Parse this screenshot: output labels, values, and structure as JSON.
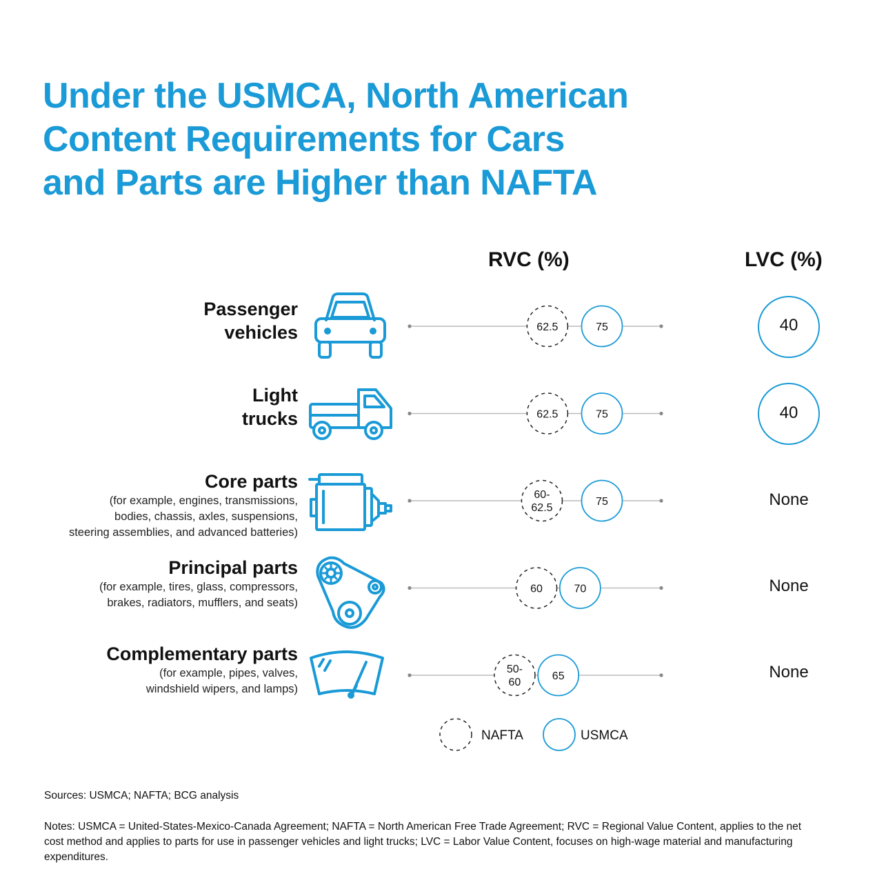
{
  "title_lines": [
    "Under the USMCA, North American",
    "Content Requirements for Cars",
    "and Parts are Higher than NAFTA"
  ],
  "colors": {
    "accent": "#1a9ad6",
    "nafta_stroke": "#222222",
    "line": "#bbbbbb"
  },
  "chart_data": {
    "type": "table",
    "title": "Under the USMCA, North American Content Requirements for Cars and Parts are Higher than NAFTA",
    "columns": [
      "RVC (%)",
      "LVC (%)"
    ],
    "series": [
      {
        "name": "NAFTA",
        "style": "dashed-circle"
      },
      {
        "name": "USMCA",
        "style": "solid-blue-circle"
      }
    ],
    "rows": [
      {
        "name": "Passenger vehicles",
        "name_lines": [
          "Passenger",
          "vehicles"
        ],
        "desc_lines": [],
        "icon": "car-icon",
        "rvc_nafta": "62.5",
        "rvc_nafta_low": 62.5,
        "rvc_nafta_high": 62.5,
        "rvc_usmca": "75",
        "rvc_usmca_value": 75,
        "lvc": "40",
        "lvc_circle": true
      },
      {
        "name": "Light trucks",
        "name_lines": [
          "Light",
          "trucks"
        ],
        "desc_lines": [],
        "icon": "truck-icon",
        "rvc_nafta": "62.5",
        "rvc_nafta_low": 62.5,
        "rvc_nafta_high": 62.5,
        "rvc_usmca": "75",
        "rvc_usmca_value": 75,
        "lvc": "40",
        "lvc_circle": true
      },
      {
        "name": "Core parts",
        "name_lines": [
          "Core parts"
        ],
        "desc_lines": [
          "(for example, engines, transmissions,",
          "bodies, chassis, axles, suspensions,",
          "steering assemblies, and advanced batteries)"
        ],
        "icon": "engine-icon",
        "rvc_nafta": "60-62.5",
        "rvc_nafta_lines": [
          "60-",
          "62.5"
        ],
        "rvc_nafta_low": 60,
        "rvc_nafta_high": 62.5,
        "rvc_usmca": "75",
        "rvc_usmca_value": 75,
        "lvc": "None",
        "lvc_circle": false
      },
      {
        "name": "Principal parts",
        "name_lines": [
          "Principal parts"
        ],
        "desc_lines": [
          "(for example, tires, glass, compressors,",
          "brakes, radiators, mufflers, and seats)"
        ],
        "icon": "belt-pulley-icon",
        "rvc_nafta": "60",
        "rvc_nafta_low": 60,
        "rvc_nafta_high": 60,
        "rvc_usmca": "70",
        "rvc_usmca_value": 70,
        "lvc": "None",
        "lvc_circle": false
      },
      {
        "name": "Complementary parts",
        "name_lines": [
          "Complementary parts"
        ],
        "desc_lines": [
          "(for example, pipes, valves,",
          "windshield wipers, and lamps)"
        ],
        "icon": "windshield-icon",
        "rvc_nafta": "50-60",
        "rvc_nafta_lines": [
          "50-",
          "60"
        ],
        "rvc_nafta_low": 50,
        "rvc_nafta_high": 60,
        "rvc_usmca": "65",
        "rvc_usmca_value": 65,
        "lvc": "None",
        "lvc_circle": false
      }
    ],
    "legend": [
      "NAFTA",
      "USMCA"
    ],
    "legend_placement": "bottom-center"
  },
  "sources": "Sources: USMCA; NAFTA; BCG analysis",
  "notes": "Notes: USMCA = United-States-Mexico-Canada Agreement; NAFTA = North American Free Trade Agreement; RVC = Regional Value Content, applies to the net cost method and applies to parts for use in passenger vehicles and light trucks; LVC = Labor Value Content, focuses on high-wage material and manufacturing expenditures."
}
